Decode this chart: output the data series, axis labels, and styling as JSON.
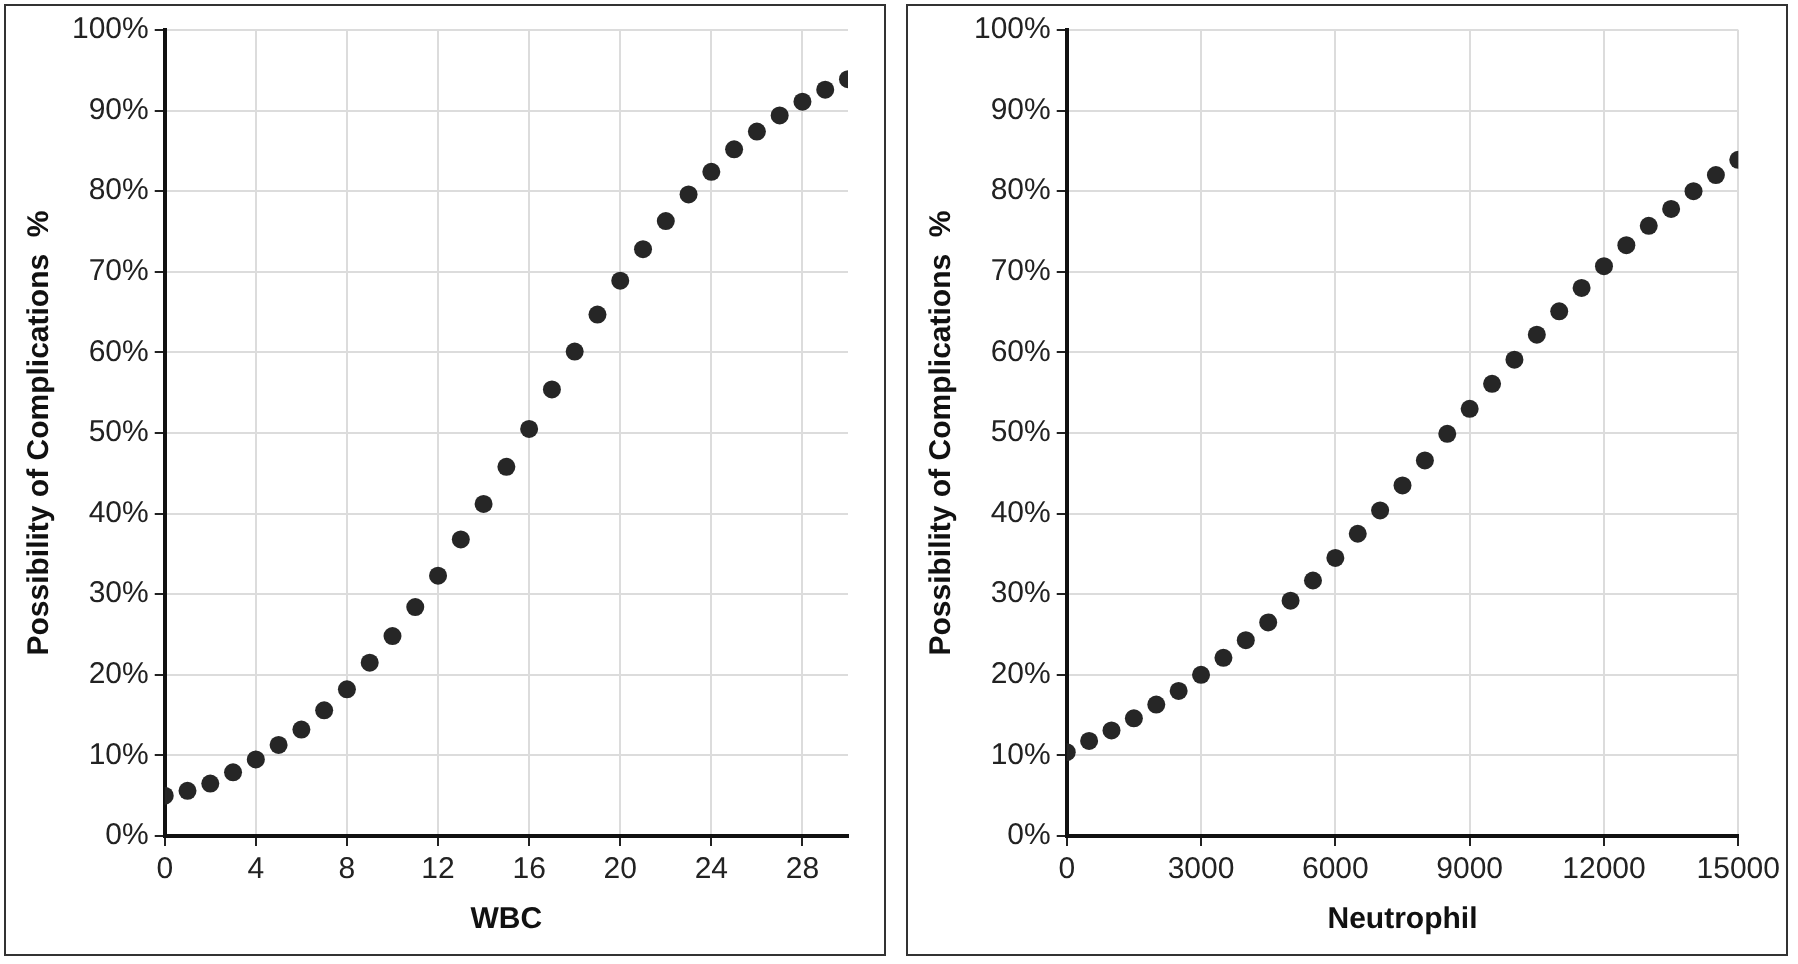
{
  "chart_data": [
    {
      "type": "scatter",
      "xlabel": "WBC",
      "ylabel": "Possibility of Complications  %",
      "x": [
        0,
        1,
        2,
        3,
        4,
        5,
        6,
        7,
        8,
        9,
        10,
        11,
        12,
        13,
        14,
        15,
        16,
        17,
        18,
        19,
        20,
        21,
        22,
        23,
        24,
        25,
        26,
        27,
        28,
        29,
        30
      ],
      "series": [
        {
          "color": "#262626",
          "values": [
            5,
            5.6,
            6.5,
            7.9,
            9.5,
            11.3,
            13.2,
            15.6,
            18.2,
            21.5,
            24.8,
            28.4,
            32.3,
            36.8,
            41.2,
            45.8,
            50.5,
            55.4,
            60.1,
            64.7,
            68.9,
            72.8,
            76.3,
            79.6,
            82.4,
            85.2,
            87.4,
            89.4,
            91.1,
            92.6,
            93.9
          ]
        }
      ],
      "xlim": [
        0,
        30
      ],
      "xticks": [
        0,
        4,
        8,
        12,
        16,
        20,
        24,
        28
      ],
      "ylim": [
        0,
        100
      ],
      "yticks": [
        {
          "value": 0,
          "label": "0%"
        },
        {
          "value": 10,
          "label": "10%"
        },
        {
          "value": 20,
          "label": "20%"
        },
        {
          "value": 30,
          "label": "30%"
        },
        {
          "value": 40,
          "label": "40%"
        },
        {
          "value": 50,
          "label": "50%"
        },
        {
          "value": 60,
          "label": "60%"
        },
        {
          "value": 70,
          "label": "70%"
        },
        {
          "value": 80,
          "label": "80%"
        },
        {
          "value": 90,
          "label": "90%"
        },
        {
          "value": 100,
          "label": "100%"
        }
      ],
      "grid": true,
      "legend": false,
      "marker": "circle"
    },
    {
      "type": "scatter",
      "xlabel": "Neutrophil",
      "ylabel": "Possibility of Complications  %",
      "x": [
        0,
        500,
        1000,
        1500,
        2000,
        2500,
        3000,
        3500,
        4000,
        4500,
        5000,
        5500,
        6000,
        6500,
        7000,
        7500,
        8000,
        8500,
        9000,
        9500,
        10000,
        10500,
        11000,
        11500,
        12000,
        12500,
        13000,
        13500,
        14000,
        14500,
        15000
      ],
      "series": [
        {
          "color": "#262626",
          "values": [
            10.4,
            11.8,
            13.1,
            14.6,
            16.3,
            18,
            20,
            22.1,
            24.3,
            26.5,
            29.2,
            31.7,
            34.5,
            37.5,
            40.4,
            43.5,
            46.6,
            49.9,
            53,
            56.1,
            59.1,
            62.2,
            65.1,
            68,
            70.7,
            73.3,
            75.7,
            77.8,
            80,
            82,
            83.9
          ]
        }
      ],
      "xlim": [
        0,
        15000
      ],
      "xticks": [
        0,
        3000,
        6000,
        9000,
        12000,
        15000
      ],
      "ylim": [
        0,
        100
      ],
      "yticks": [
        {
          "value": 0,
          "label": "0%"
        },
        {
          "value": 10,
          "label": "10%"
        },
        {
          "value": 20,
          "label": "20%"
        },
        {
          "value": 30,
          "label": "30%"
        },
        {
          "value": 40,
          "label": "40%"
        },
        {
          "value": 50,
          "label": "50%"
        },
        {
          "value": 60,
          "label": "60%"
        },
        {
          "value": 70,
          "label": "70%"
        },
        {
          "value": 80,
          "label": "80%"
        },
        {
          "value": 90,
          "label": "90%"
        },
        {
          "value": 100,
          "label": "100%"
        }
      ],
      "grid": true,
      "legend": false,
      "marker": "circle"
    }
  ]
}
